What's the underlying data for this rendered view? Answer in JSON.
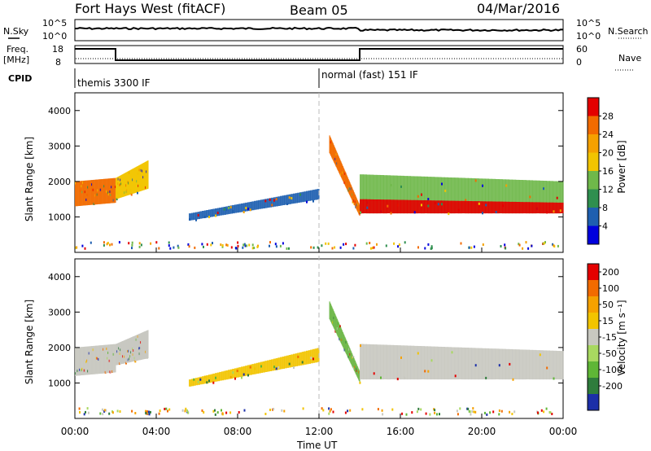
{
  "header": {
    "station": "Fort Hays West (fitACF)",
    "beam": "Beam 05",
    "date": "04/Mar/2016"
  },
  "top_panels": {
    "nsky_label": "N.Sky",
    "nsky_ticks": [
      "10^5",
      "10^0"
    ],
    "nsearch_label": "N.Search",
    "nsearch_ticks": [
      "10^5",
      "10^0"
    ],
    "freq_label": "Freq.",
    "freq_unit": "[MHz]",
    "freq_ticks": [
      "18",
      "8"
    ],
    "nave_label": "Nave",
    "nave_ticks": [
      "60",
      "0"
    ],
    "cpid_label": "CPID",
    "cpid_modes": [
      {
        "name": "themis 3300 IF",
        "start_h": 0,
        "end_h": 12
      },
      {
        "name": "normal (fast) 151 IF",
        "start_h": 12,
        "end_h": 24
      }
    ],
    "freq_steps": [
      {
        "start_h": 0,
        "end_h": 2,
        "level": 0.55
      },
      {
        "start_h": 2,
        "end_h": 14,
        "level": 0.0
      },
      {
        "start_h": 14,
        "end_h": 24,
        "level": 0.55
      }
    ]
  },
  "chart_data": [
    {
      "type": "heatmap",
      "ylabel": "Slant Range [km]",
      "ylim": [
        0,
        4500
      ],
      "yticks": [
        "1000",
        "2000",
        "3000",
        "4000"
      ],
      "xlim_hours": [
        0,
        24
      ],
      "colorbar": {
        "label": "Power [dB]",
        "ticks": [
          "4",
          "8",
          "12",
          "16",
          "20",
          "24",
          "28"
        ],
        "colors": [
          "#0000dd",
          "#1e5fb0",
          "#2f8f4f",
          "#6fb84a",
          "#f2c400",
          "#f5a100",
          "#f26b00",
          "#e40000"
        ]
      },
      "bands": [
        {
          "t0": 0.0,
          "t1": 2.0,
          "lo0": 1300,
          "lo1": 1400,
          "hi0": 2000,
          "hi1": 2100,
          "c": "#f26b00"
        },
        {
          "t0": 2.0,
          "t1": 3.6,
          "lo0": 1500,
          "lo1": 1800,
          "hi0": 2100,
          "hi1": 2600,
          "c": "#f2c400"
        },
        {
          "t0": 5.6,
          "t1": 12.0,
          "lo0": 900,
          "lo1": 1500,
          "hi0": 1100,
          "hi1": 1800,
          "c": "#1e5fb0"
        },
        {
          "t0": 12.5,
          "t1": 14.0,
          "lo0": 2800,
          "lo1": 1000,
          "hi0": 3300,
          "hi1": 1300,
          "c": "#f26b00"
        },
        {
          "t0": 14.0,
          "t1": 24.0,
          "lo0": 1100,
          "lo1": 1100,
          "hi0": 2200,
          "hi1": 2000,
          "c": "#6fb84a"
        },
        {
          "t0": 14.0,
          "t1": 24.0,
          "lo0": 1100,
          "lo1": 1100,
          "hi0": 1500,
          "hi1": 1400,
          "c": "#e40000"
        }
      ]
    },
    {
      "type": "heatmap",
      "ylabel": "Slant Range [km]",
      "ylim": [
        0,
        4500
      ],
      "yticks": [
        "1000",
        "2000",
        "3000",
        "4000"
      ],
      "xlim_hours": [
        0,
        24
      ],
      "colorbar": {
        "label": "Velocity [m s⁻¹]",
        "ticks": [
          "200",
          "100",
          "50",
          "15",
          "-15",
          "-50",
          "-100",
          "-200"
        ],
        "colors": [
          "#1c2fa8",
          "#2f7c3c",
          "#5fb636",
          "#a8d860",
          "#c8c8c0",
          "#f2c400",
          "#f5a100",
          "#f26b00",
          "#e40000"
        ]
      },
      "bands": [
        {
          "t0": 0.0,
          "t1": 2.0,
          "lo0": 1200,
          "lo1": 1300,
          "hi0": 2000,
          "hi1": 2100,
          "c": "#c8c8c0"
        },
        {
          "t0": 2.0,
          "t1": 3.6,
          "lo0": 1500,
          "lo1": 1700,
          "hi0": 2100,
          "hi1": 2500,
          "c": "#c8c8c0"
        },
        {
          "t0": 5.6,
          "t1": 12.0,
          "lo0": 900,
          "lo1": 1600,
          "hi0": 1100,
          "hi1": 2000,
          "c": "#f2c400"
        },
        {
          "t0": 12.5,
          "t1": 14.0,
          "lo0": 2800,
          "lo1": 1000,
          "hi0": 3300,
          "hi1": 1300,
          "c": "#6fb84a"
        },
        {
          "t0": 14.0,
          "t1": 24.0,
          "lo0": 1100,
          "lo1": 1100,
          "hi0": 2100,
          "hi1": 1900,
          "c": "#c8c8c0"
        }
      ]
    }
  ],
  "x_axis": {
    "label": "Time UT",
    "ticks": [
      "00:00",
      "04:00",
      "08:00",
      "12:00",
      "16:00",
      "20:00",
      "00:00"
    ]
  }
}
